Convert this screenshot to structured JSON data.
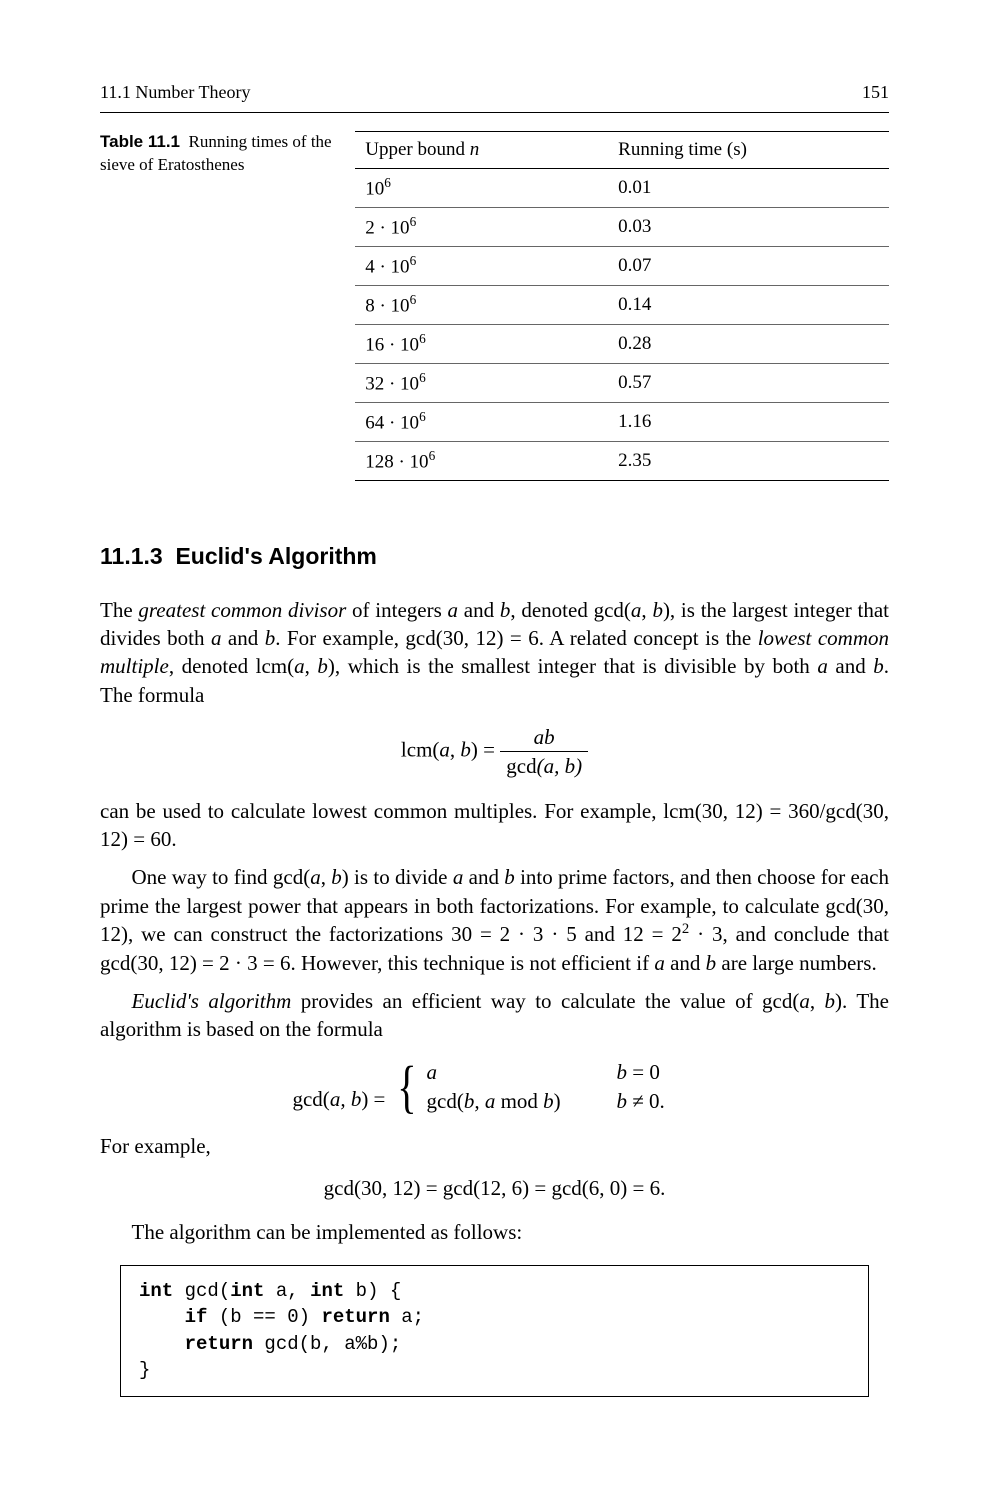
{
  "header": {
    "section_label": "11.1   Number Theory",
    "page_number": "151"
  },
  "table": {
    "label": "Table 11.1",
    "caption": "Running times of the sieve of Eratosthenes",
    "col1_header": "Upper bound n",
    "col2_header": "Running time (s)",
    "rows": [
      {
        "n_html": "10<sup>6</sup>",
        "t": "0.01"
      },
      {
        "n_html": "2 · 10<sup>6</sup>",
        "t": "0.03"
      },
      {
        "n_html": "4 · 10<sup>6</sup>",
        "t": "0.07"
      },
      {
        "n_html": "8 · 10<sup>6</sup>",
        "t": "0.14"
      },
      {
        "n_html": "16 · 10<sup>6</sup>",
        "t": "0.28"
      },
      {
        "n_html": "32 · 10<sup>6</sup>",
        "t": "0.57"
      },
      {
        "n_html": "64 · 10<sup>6</sup>",
        "t": "1.16"
      },
      {
        "n_html": "128 · 10<sup>6</sup>",
        "t": "2.35"
      }
    ]
  },
  "section": {
    "number": "11.1.3",
    "title": "Euclid's Algorithm"
  },
  "paragraphs": {
    "p1_a": "The ",
    "p1_b": "greatest common divisor",
    "p1_c": " of integers ",
    "p1_d": " and ",
    "p1_e": ", denoted gcd(",
    "p1_f": "), is the largest integer that divides both ",
    "p1_g": ". For example, gcd(30, 12) = 6. A related concept is the ",
    "p1_h": "lowest common multiple",
    "p1_i": ", denoted lcm(",
    "p1_j": "), which is the smallest integer that is divisible by both ",
    "p1_k": ". The formula",
    "p2": "can be used to calculate lowest common multiples. For example, lcm(30, 12) = 360/gcd(30, 12) = 60.",
    "p3_a": "One way to find gcd(",
    "p3_b": ") is to divide ",
    "p3_c": " into prime factors, and then choose for each prime the largest power that appears in both factorizations. For example, to calculate gcd(30, 12), we can construct the factorizations 30 = 2 · 3 · 5 and 12 = 2",
    "p3_d": " · 3, and conclude that gcd(30, 12) = 2 · 3 = 6. However, this technique is not efficient if ",
    "p3_e": " are large numbers.",
    "p4_a": "Euclid's algorithm",
    "p4_b": " provides an efficient way to calculate the value of gcd(",
    "p4_c": "). The algorithm is based on the formula",
    "p5": "For example,",
    "p6": "The algorithm can be implemented as follows:"
  },
  "formulas": {
    "lcm_lhs": "lcm(a, b) = ",
    "lcm_num": "ab",
    "lcm_den": "gcd(a, b)",
    "gcd_lhs": "gcd(a, b) = ",
    "case1_left": "a",
    "case1_right": "b = 0",
    "case2_left": "gcd(b, a mod b)",
    "case2_right": "b ≠ 0.",
    "example": "gcd(30, 12) = gcd(12, 6) = gcd(6, 0) = 6."
  },
  "code": {
    "l1_a": "int",
    "l1_b": " gcd(",
    "l1_c": "int",
    "l1_d": " a, ",
    "l1_e": "int",
    "l1_f": " b) {",
    "l2_a": "    ",
    "l2_b": "if",
    "l2_c": " (b == 0) ",
    "l2_d": "return",
    "l2_e": " a;",
    "l3_a": "    ",
    "l3_b": "return",
    "l3_c": " gcd(b, a%b);",
    "l4": "}"
  }
}
